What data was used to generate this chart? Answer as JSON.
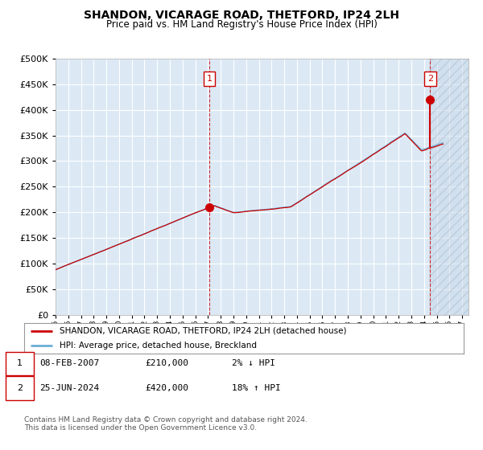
{
  "title": "SHANDON, VICARAGE ROAD, THETFORD, IP24 2LH",
  "subtitle": "Price paid vs. HM Land Registry's House Price Index (HPI)",
  "background_plot": "#dce9f5",
  "background_fig": "#ffffff",
  "grid_color": "#ffffff",
  "hpi_color": "#6baed6",
  "price_color": "#cc0000",
  "ylim": [
    0,
    500000
  ],
  "yticks": [
    0,
    50000,
    100000,
    150000,
    200000,
    250000,
    300000,
    350000,
    400000,
    450000,
    500000
  ],
  "xlim_start": 1995.0,
  "xlim_end": 2027.5,
  "marker1_x": 2007.1,
  "marker1_y": 210000,
  "marker2_x": 2024.48,
  "marker2_y": 420000,
  "future_start": 2024.48,
  "legend_line1": "SHANDON, VICARAGE ROAD, THETFORD, IP24 2LH (detached house)",
  "legend_line2": "HPI: Average price, detached house, Breckland",
  "annotation1_num": "1",
  "annotation1_date": "08-FEB-2007",
  "annotation1_price": "£210,000",
  "annotation1_hpi": "2% ↓ HPI",
  "annotation2_num": "2",
  "annotation2_date": "25-JUN-2024",
  "annotation2_price": "£420,000",
  "annotation2_hpi": "18% ↑ HPI",
  "footer": "Contains HM Land Registry data © Crown copyright and database right 2024.\nThis data is licensed under the Open Government Licence v3.0."
}
